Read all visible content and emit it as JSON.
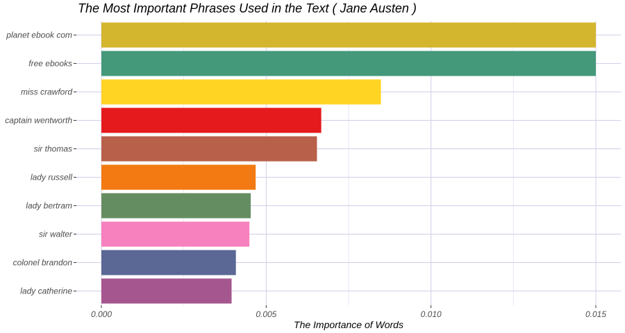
{
  "chart_data": {
    "type": "bar",
    "orientation": "horizontal",
    "title": "The Most Important Phrases Used in the Text ( Jane Austen )",
    "xlabel": "The Importance of Words",
    "ylabel": "",
    "xlim": [
      0,
      0.0157
    ],
    "x_ticks": [
      "0.000",
      "0.005",
      "0.010",
      "0.015"
    ],
    "x_tick_values": [
      0,
      0.005,
      0.01,
      0.015
    ],
    "grid": true,
    "legend": "none",
    "categories": [
      "planet ebook com",
      "free ebooks",
      "miss crawford",
      "captain wentworth",
      "sir thomas",
      "lady russell",
      "lady bertram",
      "sir walter",
      "colonel brandon",
      "lady catherine"
    ],
    "values": [
      0.015,
      0.015,
      0.00848,
      0.00667,
      0.00654,
      0.00468,
      0.00453,
      0.00449,
      0.00408,
      0.00395
    ],
    "colors": [
      "#D4B52E",
      "#43997A",
      "#FFD422",
      "#E41A1C",
      "#B8604A",
      "#F37A12",
      "#658D62",
      "#F781BF",
      "#5B6795",
      "#A6568F"
    ]
  }
}
